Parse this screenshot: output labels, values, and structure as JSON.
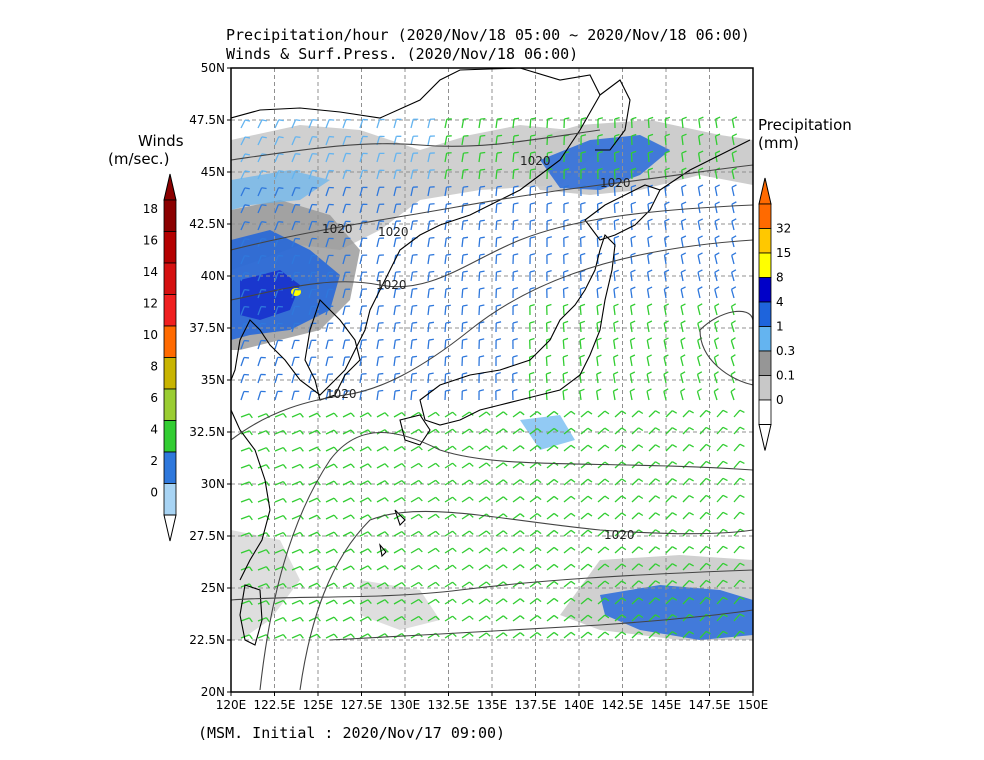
{
  "titles": {
    "line1": "Precipitation/hour (2020/Nov/18 05:00 ~ 2020/Nov/18 06:00)",
    "line2": "Winds & Surf.Press. (2020/Nov/18 06:00)"
  },
  "footer": "(MSM. Initial : 2020/Nov/17 09:00)",
  "map": {
    "lon_range": [
      120,
      150
    ],
    "lat_range": [
      20,
      50
    ],
    "lon_labels": [
      "120E",
      "122.5E",
      "125E",
      "127.5E",
      "130E",
      "132.5E",
      "135E",
      "137.5E",
      "140E",
      "142.5E",
      "145E",
      "147.5E",
      "150E"
    ],
    "lat_labels": [
      "50N",
      "47.5N",
      "45N",
      "42.5N",
      "40N",
      "37.5N",
      "35N",
      "32.5N",
      "30N",
      "27.5N",
      "25N",
      "22.5N",
      "20N"
    ],
    "grid": "dashed",
    "isobar_labels": [
      "1020",
      "1020",
      "1020",
      "1020",
      "1020",
      "1020"
    ]
  },
  "winds_colorbar": {
    "title_line1": "Winds",
    "title_line2": "(m/sec.)",
    "ticks": [
      "18",
      "16",
      "14",
      "12",
      "10",
      "8",
      "6",
      "4",
      "2",
      "0"
    ],
    "colors": [
      "#8b0000",
      "#b40000",
      "#d51010",
      "#f02020",
      "#ff6a00",
      "#c8b400",
      "#9acd32",
      "#32cd32",
      "#2f78dc",
      "#a8d4f4"
    ]
  },
  "precip_colorbar": {
    "title_line1": "Precipitation",
    "title_line2": "(mm)",
    "ticks": [
      "32",
      "15",
      "8",
      "4",
      "1",
      "0.3",
      "0.1",
      "0"
    ],
    "colors": [
      "#ff6a00",
      "#ffc800",
      "#ffff00",
      "#0000c8",
      "#1e64dc",
      "#64b4f0",
      "#969696",
      "#c8c8c8",
      "#ffffff"
    ]
  }
}
